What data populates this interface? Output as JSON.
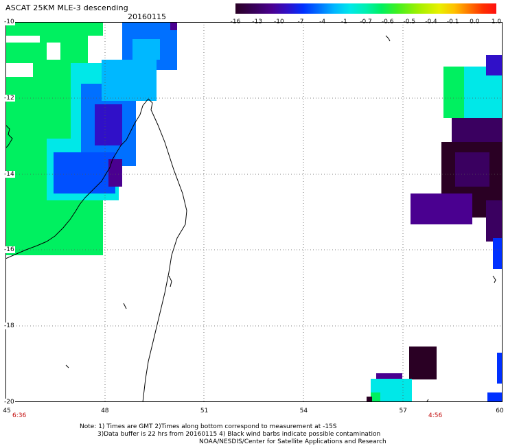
{
  "header": {
    "title": "ASCAT 25KM MLE-3 descending",
    "date": "20160115"
  },
  "colorbar": {
    "ticks": [
      "-16",
      "-13",
      "-10",
      "-7",
      "-4",
      "-1",
      "-0.7",
      "-0.6",
      "-0.5",
      "-0.4",
      "-0.1",
      "0.0",
      "1.0"
    ],
    "colors": [
      "#2a0024",
      "#3a0060",
      "#4a0090",
      "#3010c8",
      "#0030ff",
      "#0070ff",
      "#00b8ff",
      "#00e8e8",
      "#00f0b0",
      "#00f060",
      "#40f020",
      "#a0f000",
      "#e8f000",
      "#ffc000",
      "#ff7000",
      "#ff3000",
      "#ff1010"
    ]
  },
  "map": {
    "x_ticks": [
      "45",
      "48",
      "51",
      "54",
      "57",
      "60"
    ],
    "y_ticks": [
      "-10",
      "-12",
      "-14",
      "-16",
      "-18",
      "-20"
    ],
    "lon_range": [
      45,
      60
    ],
    "lat_range": [
      -10,
      -20
    ],
    "grid": true
  },
  "times": {
    "left": "6:36",
    "right": "4:56"
  },
  "notes": {
    "line1": "Note: 1) Times are GMT 2)Times along bottom correspond to measurement at -15S",
    "line2": "3)Data buffer is 22 hrs from 20160115 4) Black wind barbs indicate possible contamination",
    "line3": "NOAA/NESDIS/Center for Satellite Applications and Research"
  }
}
